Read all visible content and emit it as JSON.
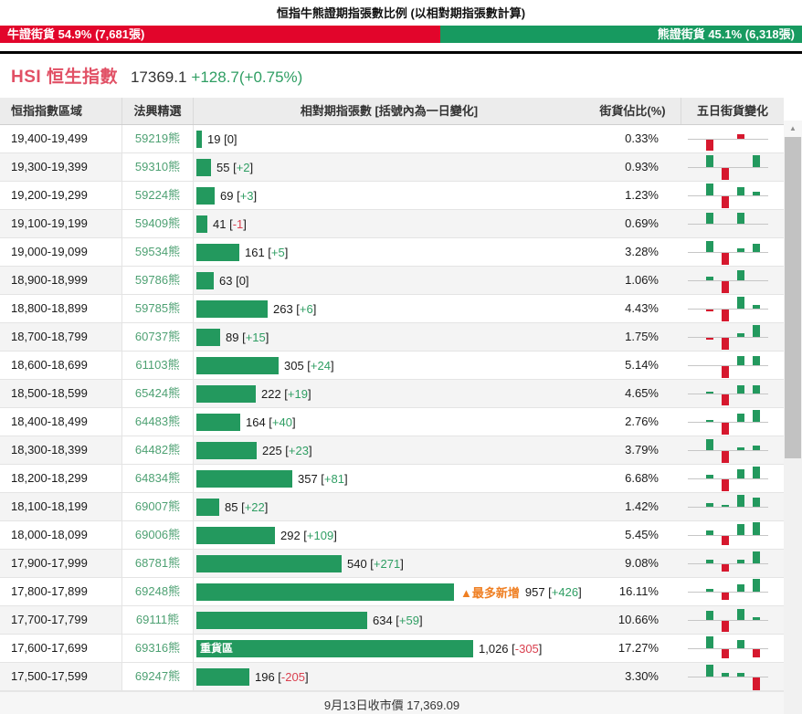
{
  "title": "恒指牛熊證期指張數比例 (以相對期指張數計算)",
  "ratio_bar": {
    "bull_label": "牛證街貨 54.9% (7,681張)",
    "bull_pct": 54.9,
    "bear_label": "熊證街貨 45.1% (6,318張)",
    "bear_pct": 45.1
  },
  "index_header": {
    "name": "HSI 恒生指數",
    "price": "17369.1",
    "change": "+128.7(+0.75%)"
  },
  "table": {
    "columns": [
      "恒指指數區域",
      "法興精選",
      "相對期指張數 [括號內為一日變化]",
      "街貨佔比(%)",
      "五日街貨變化"
    ],
    "rows": [
      {
        "range": "19,400-19,499",
        "code": "59219熊",
        "value": 19,
        "value_label": "19",
        "change": "0",
        "pct": "0.33%",
        "chart": [
          "",
          "r-12",
          "",
          "r+5",
          ""
        ]
      },
      {
        "range": "19,300-19,399",
        "code": "59310熊",
        "value": 55,
        "value_label": "55",
        "change": "+2",
        "pct": "0.93%",
        "chart": [
          "",
          "g+13",
          "r-13",
          "",
          "g+13"
        ]
      },
      {
        "range": "19,200-19,299",
        "code": "59224熊",
        "value": 69,
        "value_label": "69",
        "change": "+3",
        "pct": "1.23%",
        "chart": [
          "",
          "g+13",
          "r-13",
          "g+9",
          "g+4"
        ]
      },
      {
        "range": "19,100-19,199",
        "code": "59409熊",
        "value": 41,
        "value_label": "41",
        "change": "-1",
        "pct": "0.69%",
        "chart": [
          "",
          "g+12",
          "",
          "g+12",
          ""
        ]
      },
      {
        "range": "19,000-19,099",
        "code": "59534熊",
        "value": 161,
        "value_label": "161",
        "change": "+5",
        "pct": "3.28%",
        "chart": [
          "",
          "g+12",
          "r-13",
          "g+4",
          "g+9"
        ]
      },
      {
        "range": "18,900-18,999",
        "code": "59786熊",
        "value": 63,
        "value_label": "63",
        "change": "0",
        "pct": "1.06%",
        "chart": [
          "",
          "g+4",
          "r-13",
          "g+11",
          ""
        ]
      },
      {
        "range": "18,800-18,899",
        "code": "59785熊",
        "value": 263,
        "value_label": "263",
        "change": "+6",
        "pct": "4.43%",
        "chart": [
          "",
          "r-2",
          "r-13",
          "g+13",
          "g+4"
        ]
      },
      {
        "range": "18,700-18,799",
        "code": "60737熊",
        "value": 89,
        "value_label": "89",
        "change": "+15",
        "pct": "1.75%",
        "chart": [
          "",
          "r-2",
          "r-13",
          "g+4",
          "g+13"
        ]
      },
      {
        "range": "18,600-18,699",
        "code": "61103熊",
        "value": 305,
        "value_label": "305",
        "change": "+24",
        "pct": "5.14%",
        "chart": [
          "",
          "",
          "r-13",
          "g+10",
          "g+10"
        ]
      },
      {
        "range": "18,500-18,599",
        "code": "65424熊",
        "value": 222,
        "value_label": "222",
        "change": "+19",
        "pct": "4.65%",
        "chart": [
          "",
          "g+2",
          "r-12",
          "g+9",
          "g+9"
        ]
      },
      {
        "range": "18,400-18,499",
        "code": "64483熊",
        "value": 164,
        "value_label": "164",
        "change": "+40",
        "pct": "2.76%",
        "chart": [
          "",
          "g+2",
          "r-13",
          "g+9",
          "g+13"
        ]
      },
      {
        "range": "18,300-18,399",
        "code": "64482熊",
        "value": 225,
        "value_label": "225",
        "change": "+23",
        "pct": "3.79%",
        "chart": [
          "",
          "g+12",
          "r-13",
          "g+3",
          "g+5"
        ]
      },
      {
        "range": "18,200-18,299",
        "code": "64834熊",
        "value": 357,
        "value_label": "357",
        "change": "+81",
        "pct": "6.68%",
        "chart": [
          "",
          "g+4",
          "r-13",
          "g+10",
          "g+13"
        ]
      },
      {
        "range": "18,100-18,199",
        "code": "69007熊",
        "value": 85,
        "value_label": "85",
        "change": "+22",
        "pct": "1.42%",
        "chart": [
          "",
          "g+4",
          "g+2",
          "g+13",
          "g+10"
        ]
      },
      {
        "range": "18,000-18,099",
        "code": "69006熊",
        "value": 292,
        "value_label": "292",
        "change": "+109",
        "pct": "5.45%",
        "chart": [
          "",
          "g+5",
          "r-10",
          "g+12",
          "g+14"
        ]
      },
      {
        "range": "17,900-17,999",
        "code": "68781熊",
        "value": 540,
        "value_label": "540",
        "change": "+271",
        "pct": "9.08%",
        "chart": [
          "",
          "g+4",
          "r-8",
          "g+4",
          "g+13"
        ]
      },
      {
        "range": "17,800-17,899",
        "code": "69248熊",
        "value": 957,
        "value_label": "957",
        "change": "+426",
        "pct": "16.11%",
        "tag": "max_new",
        "chart": [
          "",
          "g+3",
          "r-8",
          "g+8",
          "g+14"
        ]
      },
      {
        "range": "17,700-17,799",
        "code": "69111熊",
        "value": 634,
        "value_label": "634",
        "change": "+59",
        "pct": "10.66%",
        "chart": [
          "",
          "g+10",
          "r-12",
          "g+12",
          "g+3"
        ]
      },
      {
        "range": "17,600-17,699",
        "code": "69316熊",
        "value": 1026,
        "value_label": "1,026",
        "change": "-305",
        "pct": "17.27%",
        "tag": "heavy_zone",
        "chart": [
          "",
          "g+13",
          "r-10",
          "g+9",
          "r-9"
        ]
      },
      {
        "range": "17,500-17,599",
        "code": "69247熊",
        "value": 196,
        "value_label": "196",
        "change": "-205",
        "pct": "3.30%",
        "chart": [
          "",
          "g+13",
          "g+4",
          "g+4",
          "r-14"
        ]
      }
    ]
  },
  "tags": {
    "max_new": "▲最多新增",
    "heavy_zone": "重貨區"
  },
  "footer": "9月13日收市價 17,369.09",
  "icons": {
    "scroll_up": "▲"
  },
  "colors": {
    "bull_red": "#e2052b",
    "bear_green": "#179a60",
    "bar_green": "#23995e",
    "chart_red": "#d6182e",
    "code_green": "#4ea173",
    "pos_green": "#2f9e63",
    "neg_red": "#d9404f",
    "hsi_red": "#e15065",
    "tag_orange": "#ef7f22"
  },
  "chart_data": {
    "type": "bar",
    "title": "恒指牛熊證期指張數比例 (以相對期指張數計算)",
    "categories": [
      "19,400-19,499",
      "19,300-19,399",
      "19,200-19,299",
      "19,100-19,199",
      "19,000-19,099",
      "18,900-18,999",
      "18,800-18,899",
      "18,700-18,799",
      "18,600-18,699",
      "18,500-18,599",
      "18,400-18,499",
      "18,300-18,399",
      "18,200-18,299",
      "18,100-18,199",
      "18,000-18,099",
      "17,900-17,999",
      "17,800-17,899",
      "17,700-17,799",
      "17,600-17,699",
      "17,500-17,599"
    ],
    "series": [
      {
        "name": "相對期指張數",
        "values": [
          19,
          55,
          69,
          41,
          161,
          63,
          263,
          89,
          305,
          222,
          164,
          225,
          357,
          85,
          292,
          540,
          957,
          634,
          1026,
          196
        ]
      },
      {
        "name": "一日變化",
        "values": [
          0,
          2,
          3,
          -1,
          5,
          0,
          6,
          15,
          24,
          19,
          40,
          23,
          81,
          22,
          109,
          271,
          426,
          59,
          -305,
          -205
        ]
      },
      {
        "name": "街貨佔比(%)",
        "values": [
          0.33,
          0.93,
          1.23,
          0.69,
          3.28,
          1.06,
          4.43,
          1.75,
          5.14,
          4.65,
          2.76,
          3.79,
          6.68,
          1.42,
          5.45,
          9.08,
          16.11,
          10.66,
          17.27,
          3.3
        ]
      }
    ],
    "annotations": [
      {
        "category": "17,800-17,899",
        "label": "▲最多新增"
      },
      {
        "category": "17,600-17,699",
        "label": "重貨區"
      }
    ],
    "legend_position": "none",
    "grid": false
  }
}
